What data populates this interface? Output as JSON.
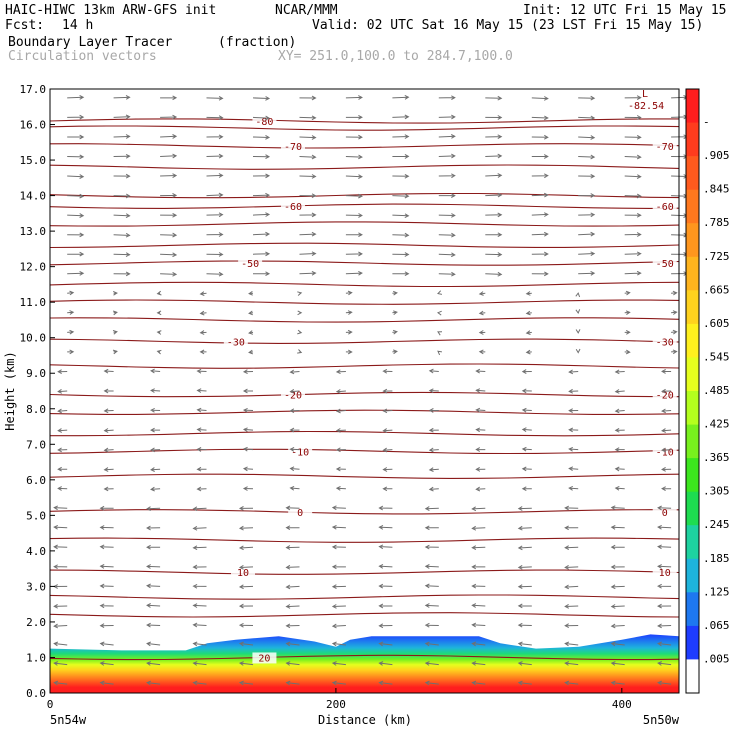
{
  "header": {
    "title_left": "HAIC-HIWC 13km ARW-GFS init",
    "org": "NCAR/MMM",
    "init": "Init: 12 UTC Fri 15 May 15",
    "fcst_label": "Fcst:",
    "fcst_value": "14 h",
    "valid": "Valid: 02 UTC Sat 16 May 15 (23 LST Fri 15 May 15)",
    "field": "Boundary Layer Tracer",
    "field_units": "(fraction)",
    "vectors": "Circulation vectors",
    "xsec": "XY= 251.0,100.0 to 284.7,100.0"
  },
  "chart_data": {
    "type": "cross-section",
    "ylabel": "Height (km)",
    "xlabel": "Distance (km)",
    "ylim": [
      0,
      17
    ],
    "xlim": [
      0,
      440
    ],
    "yticks": [
      "0.0",
      "1.0",
      "2.0",
      "3.0",
      "4.0",
      "5.0",
      "6.0",
      "7.0",
      "8.0",
      "9.0",
      "10.0",
      "11.0",
      "12.0",
      "13.0",
      "14.0",
      "15.0",
      "16.0",
      "17.0"
    ],
    "xticks": [
      {
        "value": 0,
        "label": "0"
      },
      {
        "value": 200,
        "label": "200"
      },
      {
        "value": 400,
        "label": "400"
      }
    ],
    "endpoint_left": "5n54w",
    "endpoint_right": "5n50w",
    "colorbar": {
      "labels": [
        "-",
        ".905",
        ".845",
        ".785",
        ".725",
        ".665",
        ".605",
        ".545",
        ".485",
        ".425",
        ".365",
        ".305",
        ".245",
        ".185",
        ".125",
        ".065",
        ".005"
      ],
      "colors": [
        "#ff1e1e",
        "#ff3c1e",
        "#ff5a1e",
        "#ff781e",
        "#ff961e",
        "#ffb41e",
        "#ffd21e",
        "#fff01e",
        "#e6ff1e",
        "#b4ff1e",
        "#78f01e",
        "#3ce61e",
        "#1edc50",
        "#1ed2a0",
        "#1eb4dc",
        "#1e78f0",
        "#1e3cff",
        "#ffffff"
      ]
    },
    "temperature_contours": {
      "unit": "C",
      "labeled": [
        {
          "value": "-80",
          "z": 16.1
        },
        {
          "value": "-70",
          "z": 15.4
        },
        {
          "value": "-60",
          "z": 13.7
        },
        {
          "value": "-50",
          "z": 12.1
        },
        {
          "value": "-30",
          "z": 9.9
        },
        {
          "value": "-20",
          "z": 8.4
        },
        {
          "value": "-10",
          "z": 6.8
        },
        {
          "value": "0",
          "z": 5.1
        },
        {
          "value": "10",
          "z": 3.4
        },
        {
          "value": "20",
          "z": 1.0
        }
      ],
      "minimum_label": "L",
      "minimum_value": "-82.54"
    },
    "tracer_top_km": [
      {
        "x": 0,
        "z": 1.25
      },
      {
        "x": 50,
        "z": 1.2
      },
      {
        "x": 95,
        "z": 1.2
      },
      {
        "x": 110,
        "z": 1.4
      },
      {
        "x": 130,
        "z": 1.5
      },
      {
        "x": 160,
        "z": 1.6
      },
      {
        "x": 185,
        "z": 1.45
      },
      {
        "x": 200,
        "z": 1.3
      },
      {
        "x": 210,
        "z": 1.5
      },
      {
        "x": 225,
        "z": 1.6
      },
      {
        "x": 300,
        "z": 1.6
      },
      {
        "x": 315,
        "z": 1.4
      },
      {
        "x": 340,
        "z": 1.25
      },
      {
        "x": 370,
        "z": 1.3
      },
      {
        "x": 400,
        "z": 1.5
      },
      {
        "x": 420,
        "z": 1.65
      },
      {
        "x": 440,
        "z": 1.6
      }
    ]
  }
}
